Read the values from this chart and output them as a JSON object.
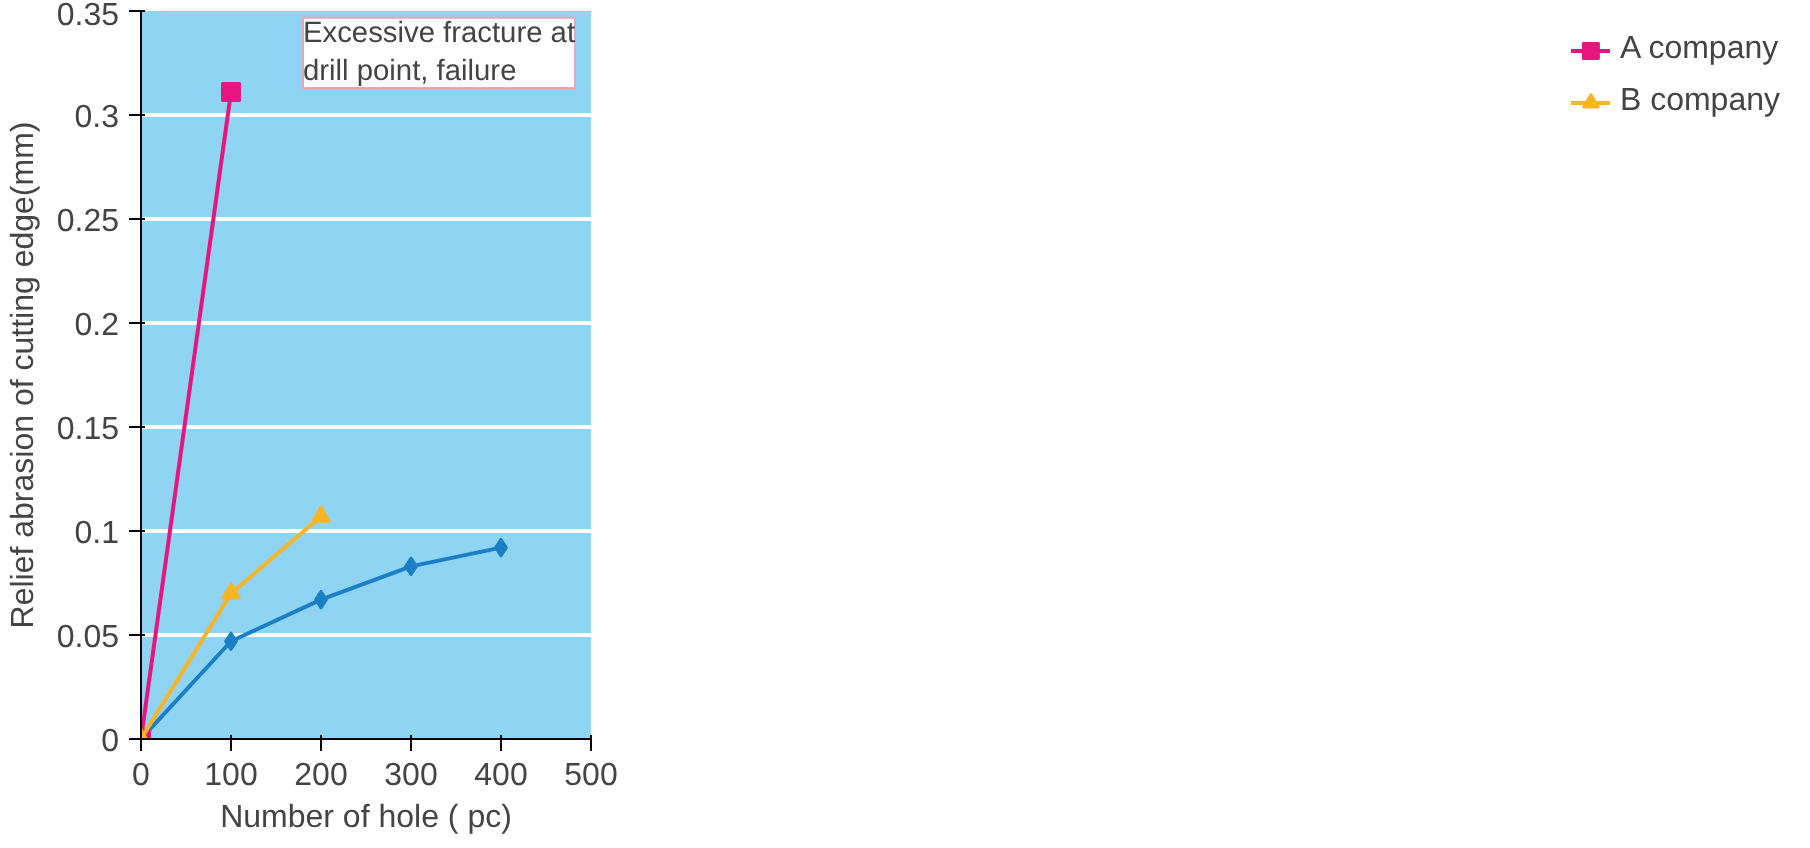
{
  "chart_data": {
    "type": "line",
    "xlabel": "Number of hole ( pc)",
    "ylabel": "Relief abrasion of cutting edge(mm)",
    "xlim": [
      0,
      500
    ],
    "xticks": [
      0,
      100,
      200,
      300,
      400,
      500
    ],
    "ylim": [
      0,
      0.35
    ],
    "yticks": [
      0,
      0.05,
      0.1,
      0.15,
      0.2,
      0.25,
      0.3,
      0.35
    ],
    "grid": "y",
    "legend": "right",
    "line_style": "solid",
    "series": [
      {
        "color": "#1a7fc4",
        "marker": "diamond",
        "x": [
          0,
          100,
          200,
          300,
          400
        ],
        "values": [
          0,
          0.047,
          0.067,
          0.083,
          0.092
        ]
      },
      {
        "name": "A company",
        "color": "#e6157f",
        "marker": "square",
        "x": [
          0,
          100
        ],
        "values": [
          0,
          0.311
        ]
      },
      {
        "name": "B company",
        "color": "#f7b526",
        "marker": "triangle",
        "x": [
          0,
          100,
          200
        ],
        "values": [
          0,
          0.07,
          0.107
        ]
      }
    ],
    "annotations": [
      {
        "text": "Excessive fracture at\ndrill point, failure",
        "x": 100,
        "y": 0.311
      }
    ]
  }
}
